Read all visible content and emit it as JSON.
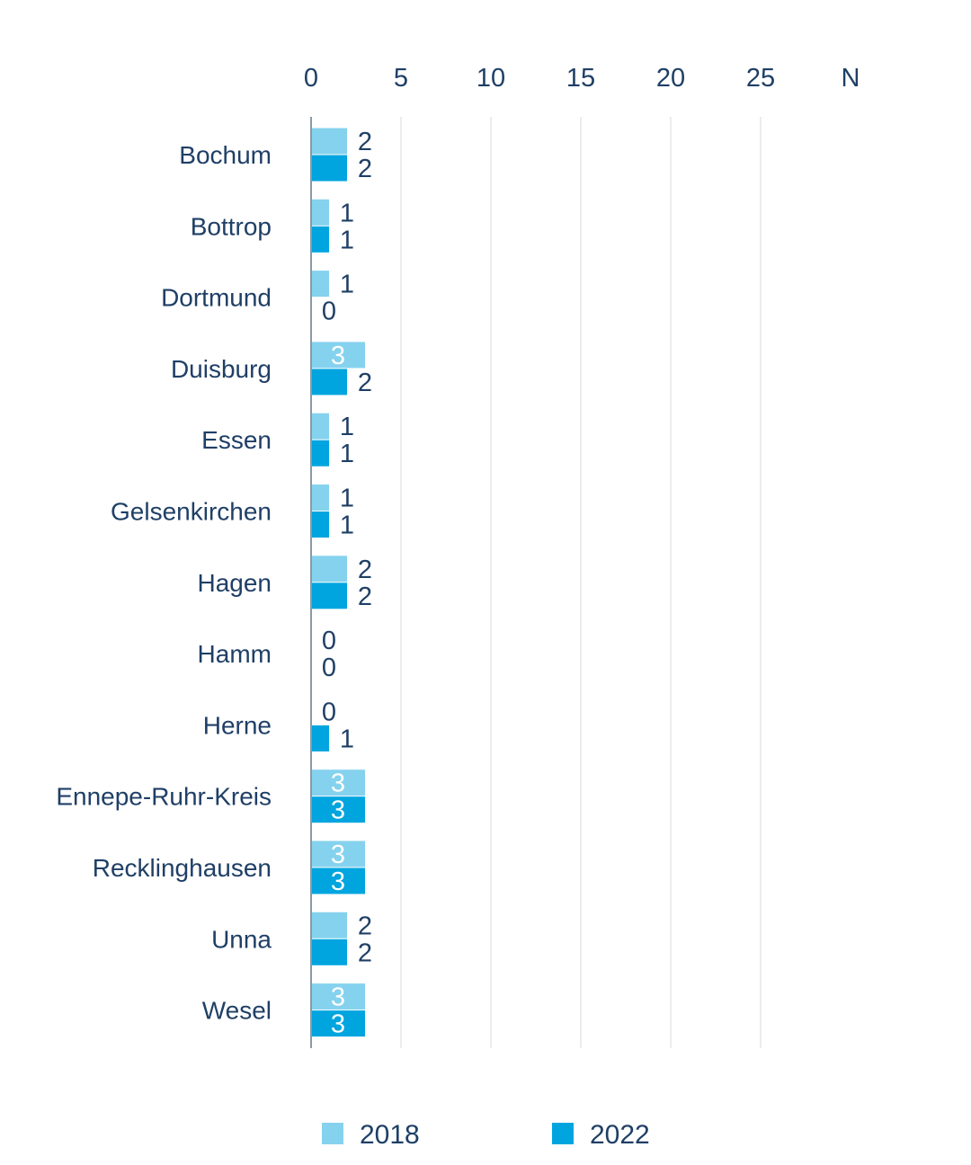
{
  "chart_data": {
    "type": "bar",
    "orientation": "horizontal",
    "categories": [
      "Bochum",
      "Bottrop",
      "Dortmund",
      "Duisburg",
      "Essen",
      "Gelsenkirchen",
      "Hagen",
      "Hamm",
      "Herne",
      "Ennepe-Ruhr-Kreis",
      "Recklinghausen",
      "Unna",
      "Wesel"
    ],
    "series": [
      {
        "name": "2018",
        "color": "#85d2ee",
        "values": [
          2,
          1,
          1,
          3,
          1,
          1,
          2,
          0,
          0,
          3,
          3,
          2,
          3
        ]
      },
      {
        "name": "2022",
        "color": "#00a5df",
        "values": [
          2,
          1,
          0,
          2,
          1,
          1,
          2,
          0,
          1,
          3,
          3,
          2,
          3
        ]
      }
    ],
    "x_ticks": [
      "0",
      "5",
      "10",
      "15",
      "20",
      "25"
    ],
    "x_unit_label": "N",
    "xlim": [
      0,
      30
    ],
    "axis_position": "top",
    "grid": true,
    "legend_position": "bottom",
    "label_color": "#1f3f66",
    "inside_label_color": "#ffffff"
  }
}
